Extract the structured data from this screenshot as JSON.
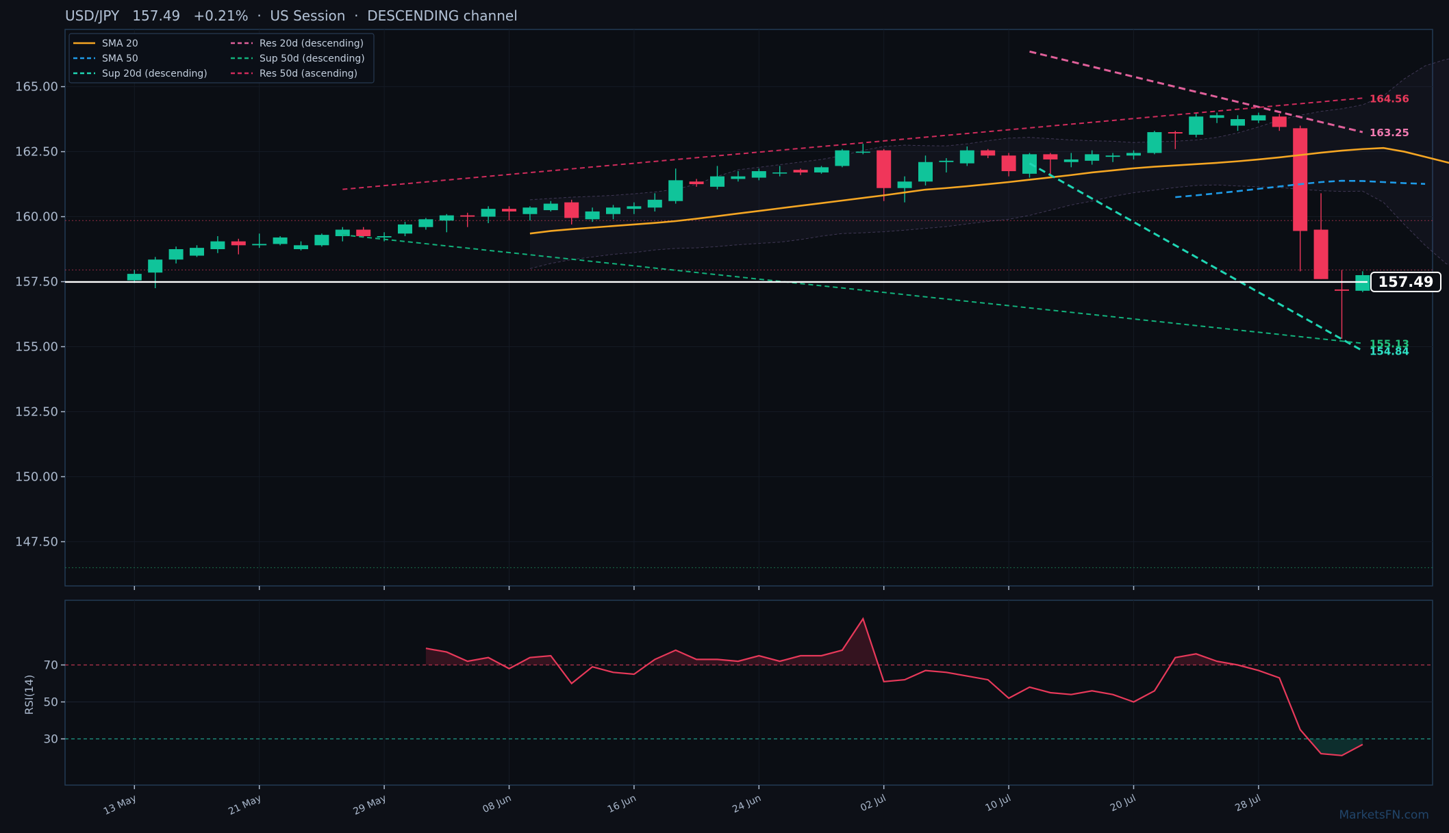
{
  "header": {
    "title": "USD/JPY   157.49   +0.21%  ·  US Session  ·  DESCENDING channel"
  },
  "watermark": "MarketsFN.com",
  "colors": {
    "background": "#0d1017",
    "panel_border": "#233a55",
    "axis_text": "#aab8cc",
    "up": "#10c49a",
    "down": "#f0365a",
    "sma20": "#f5a623",
    "sma50": "#1e9be8",
    "sup20": "#1fd6b4",
    "sup50": "#12b27c",
    "res20": "#e0609a",
    "res50": "#d02c5c",
    "last_price": "#ffffff",
    "rsi_line": "#e8395a",
    "band": "#6a5a88"
  },
  "legend": {
    "items": [
      {
        "label": "SMA 20",
        "color": "#f5a623",
        "style": "solid"
      },
      {
        "label": "SMA 50",
        "color": "#1e9be8",
        "style": "dash"
      },
      {
        "label": "Sup 20d (descending)",
        "color": "#1fd6b4",
        "style": "dash"
      },
      {
        "label": "Res 20d (descending)",
        "color": "#e0609a",
        "style": "dash"
      },
      {
        "label": "Sup 50d (descending)",
        "color": "#12b27c",
        "style": "dash"
      },
      {
        "label": "Res 50d (ascending)",
        "color": "#d02c5c",
        "style": "dash"
      }
    ]
  },
  "chart_data": [
    {
      "type": "candlestick",
      "title": "USD/JPY   157.49   +0.21%  ·  US Session  ·  DESCENDING channel",
      "ylim": [
        145.8,
        167.2
      ],
      "y_ticks": [
        "147.50",
        "150.00",
        "152.50",
        "155.00",
        "157.50",
        "160.00",
        "162.50",
        "165.00"
      ],
      "x_ticks": [
        {
          "label": "13 May",
          "day": 0
        },
        {
          "label": "21 May",
          "day": 6
        },
        {
          "label": "29 May",
          "day": 12
        },
        {
          "label": "08 Jun",
          "day": 18
        },
        {
          "label": "16 Jun",
          "day": 24
        },
        {
          "label": "24 Jun",
          "day": 30
        },
        {
          "label": "02 Jul",
          "day": 36
        },
        {
          "label": "10 Jul",
          "day": 42
        },
        {
          "label": "20 Jul",
          "day": 48
        },
        {
          "label": "28 Jul",
          "day": 54
        }
      ],
      "ohlc": [
        {
          "o": 157.55,
          "h": 157.95,
          "l": 157.45,
          "c": 157.8
        },
        {
          "o": 157.85,
          "h": 158.45,
          "l": 157.25,
          "c": 158.35
        },
        {
          "o": 158.35,
          "h": 158.85,
          "l": 158.2,
          "c": 158.75
        },
        {
          "o": 158.5,
          "h": 158.9,
          "l": 158.45,
          "c": 158.8
        },
        {
          "o": 158.75,
          "h": 159.25,
          "l": 158.6,
          "c": 159.05
        },
        {
          "o": 159.05,
          "h": 159.15,
          "l": 158.55,
          "c": 158.9
        },
        {
          "o": 158.9,
          "h": 159.35,
          "l": 158.8,
          "c": 158.95
        },
        {
          "o": 158.95,
          "h": 159.25,
          "l": 158.9,
          "c": 159.2
        },
        {
          "o": 158.75,
          "h": 159.05,
          "l": 158.7,
          "c": 158.9
        },
        {
          "o": 158.9,
          "h": 159.35,
          "l": 158.85,
          "c": 159.3
        },
        {
          "o": 159.25,
          "h": 159.6,
          "l": 159.05,
          "c": 159.5
        },
        {
          "o": 159.5,
          "h": 159.6,
          "l": 159.2,
          "c": 159.25
        },
        {
          "o": 159.2,
          "h": 159.4,
          "l": 159.05,
          "c": 159.25
        },
        {
          "o": 159.35,
          "h": 159.8,
          "l": 159.25,
          "c": 159.7
        },
        {
          "o": 159.6,
          "h": 159.95,
          "l": 159.5,
          "c": 159.9
        },
        {
          "o": 159.85,
          "h": 160.1,
          "l": 159.4,
          "c": 160.05
        },
        {
          "o": 160.05,
          "h": 160.15,
          "l": 159.6,
          "c": 160.0
        },
        {
          "o": 160.0,
          "h": 160.4,
          "l": 159.75,
          "c": 160.3
        },
        {
          "o": 160.3,
          "h": 160.4,
          "l": 159.85,
          "c": 160.2
        },
        {
          "o": 160.1,
          "h": 160.4,
          "l": 159.85,
          "c": 160.35
        },
        {
          "o": 160.25,
          "h": 160.6,
          "l": 160.2,
          "c": 160.5
        },
        {
          "o": 160.55,
          "h": 160.65,
          "l": 159.7,
          "c": 159.95
        },
        {
          "o": 159.9,
          "h": 160.35,
          "l": 159.8,
          "c": 160.2
        },
        {
          "o": 160.1,
          "h": 160.45,
          "l": 159.9,
          "c": 160.35
        },
        {
          "o": 160.3,
          "h": 160.55,
          "l": 160.1,
          "c": 160.4
        },
        {
          "o": 160.35,
          "h": 160.9,
          "l": 160.2,
          "c": 160.65
        },
        {
          "o": 160.6,
          "h": 161.85,
          "l": 160.5,
          "c": 161.4
        },
        {
          "o": 161.35,
          "h": 161.45,
          "l": 161.15,
          "c": 161.25
        },
        {
          "o": 161.15,
          "h": 161.95,
          "l": 161.05,
          "c": 161.55
        },
        {
          "o": 161.45,
          "h": 161.75,
          "l": 161.35,
          "c": 161.55
        },
        {
          "o": 161.5,
          "h": 161.85,
          "l": 161.4,
          "c": 161.75
        },
        {
          "o": 161.7,
          "h": 161.95,
          "l": 161.55,
          "c": 161.7
        },
        {
          "o": 161.8,
          "h": 161.85,
          "l": 161.6,
          "c": 161.7
        },
        {
          "o": 161.7,
          "h": 161.95,
          "l": 161.65,
          "c": 161.9
        },
        {
          "o": 161.95,
          "h": 162.6,
          "l": 161.9,
          "c": 162.55
        },
        {
          "o": 162.5,
          "h": 162.8,
          "l": 162.4,
          "c": 162.5
        },
        {
          "o": 162.55,
          "h": 162.6,
          "l": 160.6,
          "c": 161.1
        },
        {
          "o": 161.1,
          "h": 161.55,
          "l": 160.55,
          "c": 161.35
        },
        {
          "o": 161.35,
          "h": 162.35,
          "l": 161.2,
          "c": 162.1
        },
        {
          "o": 162.1,
          "h": 162.25,
          "l": 161.7,
          "c": 162.15
        },
        {
          "o": 162.05,
          "h": 162.7,
          "l": 161.95,
          "c": 162.55
        },
        {
          "o": 162.55,
          "h": 162.6,
          "l": 162.25,
          "c": 162.35
        },
        {
          "o": 162.35,
          "h": 162.45,
          "l": 161.55,
          "c": 161.75
        },
        {
          "o": 161.65,
          "h": 162.45,
          "l": 161.5,
          "c": 162.4
        },
        {
          "o": 162.4,
          "h": 162.45,
          "l": 161.6,
          "c": 162.2
        },
        {
          "o": 162.1,
          "h": 162.45,
          "l": 161.9,
          "c": 162.2
        },
        {
          "o": 162.15,
          "h": 162.55,
          "l": 162.0,
          "c": 162.4
        },
        {
          "o": 162.3,
          "h": 162.45,
          "l": 162.1,
          "c": 162.35
        },
        {
          "o": 162.35,
          "h": 162.55,
          "l": 162.2,
          "c": 162.45
        },
        {
          "o": 162.45,
          "h": 163.3,
          "l": 162.4,
          "c": 163.25
        },
        {
          "o": 163.25,
          "h": 163.3,
          "l": 162.6,
          "c": 163.2
        },
        {
          "o": 163.15,
          "h": 164.0,
          "l": 163.05,
          "c": 163.85
        },
        {
          "o": 163.8,
          "h": 164.0,
          "l": 163.6,
          "c": 163.9
        },
        {
          "o": 163.5,
          "h": 163.9,
          "l": 163.3,
          "c": 163.75
        },
        {
          "o": 163.7,
          "h": 164.0,
          "l": 163.6,
          "c": 163.9
        },
        {
          "o": 163.85,
          "h": 163.95,
          "l": 163.3,
          "c": 163.45
        },
        {
          "o": 163.4,
          "h": 163.5,
          "l": 157.9,
          "c": 159.45
        },
        {
          "o": 159.5,
          "h": 160.9,
          "l": 157.6,
          "c": 157.6
        },
        {
          "o": 157.2,
          "h": 157.95,
          "l": 155.3,
          "c": 157.15
        },
        {
          "o": 157.15,
          "h": 157.9,
          "l": 157.1,
          "c": 157.75
        }
      ],
      "series": [
        {
          "name": "SMA 20",
          "start": 19,
          "values": [
            159.35,
            159.45,
            159.52,
            159.58,
            159.64,
            159.7,
            159.76,
            159.83,
            159.92,
            160.02,
            160.12,
            160.22,
            160.32,
            160.42,
            160.52,
            160.62,
            160.72,
            160.82,
            160.93,
            161.04,
            161.1,
            161.17,
            161.25,
            161.33,
            161.42,
            161.51,
            161.6,
            161.7,
            161.78,
            161.86,
            161.92,
            161.97,
            162.02,
            162.07,
            162.13,
            162.2,
            162.28,
            162.37,
            162.46,
            162.54,
            162.6,
            162.64,
            162.5,
            162.3,
            162.1,
            161.9
          ]
        },
        {
          "name": "SMA 50",
          "start": 50,
          "values": [
            160.75,
            160.82,
            160.9,
            160.98,
            161.07,
            161.16,
            161.25,
            161.33,
            161.38,
            161.37,
            161.33,
            161.29,
            161.26
          ]
        },
        {
          "name": "Sup 20d (descending)",
          "start": 43,
          "values": [
            162.05,
            154.84
          ]
        },
        {
          "name": "Res 20d (descending)",
          "start": 43,
          "values": [
            166.35,
            163.25
          ]
        },
        {
          "name": "Sup 50d (descending)",
          "start": 10,
          "values": [
            159.3,
            155.13
          ]
        },
        {
          "name": "Res 50d (ascending)",
          "start": 10,
          "values": [
            161.05,
            164.56
          ]
        }
      ],
      "band": {
        "start": 19,
        "upper": [
          160.65,
          160.7,
          160.75,
          160.78,
          160.82,
          160.88,
          160.95,
          161.05,
          161.25,
          161.55,
          161.8,
          161.9,
          162.0,
          162.1,
          162.2,
          162.35,
          162.55,
          162.7,
          162.75,
          162.73,
          162.72,
          162.8,
          162.92,
          163.02,
          163.05,
          163.0,
          162.95,
          162.92,
          162.9,
          162.85,
          162.88,
          162.9,
          162.95,
          163.05,
          163.22,
          163.45,
          163.72,
          163.9,
          164.05,
          164.15,
          164.3,
          164.65,
          165.3,
          165.8,
          166.05,
          166.15
        ],
        "lower": [
          158.0,
          158.2,
          158.35,
          158.45,
          158.55,
          158.62,
          158.72,
          158.78,
          158.8,
          158.85,
          158.92,
          158.97,
          159.02,
          159.12,
          159.25,
          159.35,
          159.38,
          159.42,
          159.48,
          159.55,
          159.62,
          159.72,
          159.82,
          159.9,
          160.05,
          160.25,
          160.45,
          160.6,
          160.78,
          160.92,
          161.02,
          161.12,
          161.2,
          161.22,
          161.18,
          161.15,
          161.12,
          161.05,
          161.0,
          160.97,
          160.98,
          160.55,
          159.7,
          158.9,
          158.2,
          157.75
        ]
      },
      "horizontal_levels": [
        {
          "value": 159.85,
          "color": "#b8354f",
          "style": "dotted"
        },
        {
          "value": 157.95,
          "color": "#b8354f",
          "style": "dotted"
        },
        {
          "value": 146.5,
          "color": "#1f8a5a",
          "style": "dotted"
        }
      ],
      "last_price": {
        "value": 157.49,
        "label": "157.49"
      },
      "right_labels": [
        {
          "text": "164.56",
          "value": 164.56,
          "color": "#e8395a"
        },
        {
          "text": "163.25",
          "value": 163.25,
          "color": "#f07ab0"
        },
        {
          "text": "155.13",
          "value": 155.13,
          "color": "#22c47e"
        },
        {
          "text": "154.84",
          "value": 154.84,
          "color": "#2fe0c4"
        }
      ]
    },
    {
      "type": "line",
      "ylabel": "RSI(14)",
      "ylim": [
        5,
        105
      ],
      "y_ticks": [
        "30",
        "50",
        "70"
      ],
      "overbought": 70,
      "oversold": 30,
      "series": [
        {
          "name": "RSI(14)",
          "start": 14,
          "values": [
            79,
            77,
            72,
            74,
            68,
            74,
            75,
            60,
            69,
            66,
            65,
            73,
            78,
            73,
            73,
            72,
            75,
            72,
            75,
            75,
            78,
            95,
            61,
            62,
            67,
            66,
            64,
            62,
            52,
            58,
            55,
            54,
            56,
            54,
            50,
            56,
            74,
            76,
            72,
            70,
            67,
            63,
            35,
            22,
            21,
            27
          ]
        }
      ]
    }
  ]
}
